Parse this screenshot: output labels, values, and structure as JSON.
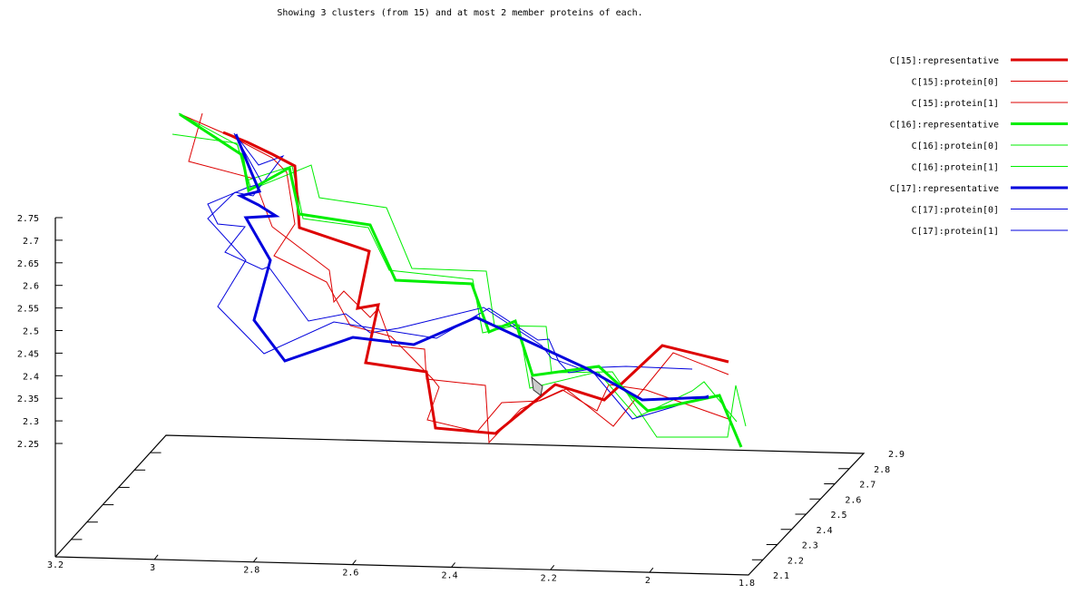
{
  "chart_data": {
    "type": "line",
    "title": "Showing 3 clusters (from 15) and at most 2 member proteins of each.",
    "axes": {
      "x": {
        "range": [
          3.2,
          1.8
        ],
        "ticks": [
          "3.2",
          "3",
          "2.8",
          "2.6",
          "2.4",
          "2.2",
          "2",
          "1.8"
        ]
      },
      "y": {
        "range": [
          2.1,
          2.9
        ],
        "ticks": [
          "2.1",
          "2.2",
          "2.3",
          "2.4",
          "2.5",
          "2.6",
          "2.7",
          "2.8",
          "2.9"
        ]
      },
      "z": {
        "range": [
          2.25,
          2.75
        ],
        "ticks": [
          "2.25",
          "2.3",
          "2.35",
          "2.4",
          "2.45",
          "2.5",
          "2.55",
          "2.6",
          "2.65",
          "2.7",
          "2.75"
        ]
      }
    },
    "grid": false,
    "legend_position": "top-right",
    "series": [
      {
        "name": "C[15]:representative",
        "color": "#dd0000",
        "width": 3,
        "points": [
          [
            246,
            146
          ],
          [
            273,
            157
          ],
          [
            300,
            170
          ],
          [
            325,
            183
          ],
          [
            330,
            251
          ],
          [
            407,
            277
          ],
          [
            394,
            340
          ],
          [
            417,
            336
          ],
          [
            403,
            400
          ],
          [
            470,
            410
          ],
          [
            480,
            472
          ],
          [
            546,
            478
          ],
          [
            612,
            424
          ],
          [
            666,
            441
          ],
          [
            730,
            381
          ],
          [
            803,
            399
          ]
        ]
      },
      {
        "name": "C[15]:protein[0]",
        "color": "#dd0000",
        "width": 1,
        "points": [
          [
            223,
            125
          ],
          [
            208,
            178
          ],
          [
            280,
            197
          ],
          [
            300,
            250
          ],
          [
            363,
            298
          ],
          [
            368,
            333
          ],
          [
            379,
            321
          ],
          [
            408,
            350
          ],
          [
            417,
            340
          ],
          [
            432,
            381
          ],
          [
            468,
            385
          ],
          [
            470,
            418
          ],
          [
            535,
            425
          ],
          [
            539,
            488
          ],
          [
            574,
            451
          ],
          [
            620,
            430
          ],
          [
            658,
            453
          ],
          [
            671,
            424
          ],
          [
            712,
            430
          ],
          [
            803,
            462
          ]
        ]
      },
      {
        "name": "C[15]:protein[1]",
        "color": "#dd0000",
        "width": 1,
        "points": [
          [
            199,
            126
          ],
          [
            254,
            150
          ],
          [
            300,
            174
          ],
          [
            316,
            190
          ],
          [
            325,
            247
          ],
          [
            302,
            282
          ],
          [
            360,
            311
          ],
          [
            386,
            359
          ],
          [
            431,
            371
          ],
          [
            477,
            418
          ],
          [
            484,
            427
          ],
          [
            471,
            463
          ],
          [
            526,
            476
          ],
          [
            553,
            444
          ],
          [
            595,
            442
          ],
          [
            624,
            429
          ],
          [
            676,
            470
          ],
          [
            742,
            389
          ],
          [
            803,
            413
          ]
        ]
      },
      {
        "name": "C[16]:representative",
        "color": "#00ee00",
        "width": 3,
        "points": [
          [
            198,
            126
          ],
          [
            267,
            171
          ],
          [
            274,
            210
          ],
          [
            319,
            185
          ],
          [
            330,
            236
          ],
          [
            408,
            248
          ],
          [
            436,
            309
          ],
          [
            520,
            313
          ],
          [
            539,
            366
          ],
          [
            568,
            354
          ],
          [
            587,
            414
          ],
          [
            660,
            404
          ],
          [
            714,
            453
          ],
          [
            793,
            436
          ],
          [
            817,
            493
          ]
        ]
      },
      {
        "name": "C[16]:protein[0]",
        "color": "#00ee00",
        "width": 1,
        "points": [
          [
            190,
            148
          ],
          [
            261,
            158
          ],
          [
            277,
            209
          ],
          [
            343,
            182
          ],
          [
            352,
            218
          ],
          [
            426,
            229
          ],
          [
            454,
            296
          ],
          [
            536,
            299
          ],
          [
            545,
            359
          ],
          [
            602,
            360
          ],
          [
            608,
            411
          ],
          [
            675,
            410
          ],
          [
            724,
            482
          ],
          [
            802,
            482
          ],
          [
            811,
            425
          ],
          [
            822,
            470
          ]
        ]
      },
      {
        "name": "C[16]:protein[1]",
        "color": "#00ee00",
        "width": 1,
        "points": [
          [
            197,
            125
          ],
          [
            262,
            160
          ],
          [
            272,
            199
          ],
          [
            322,
            183
          ],
          [
            334,
            241
          ],
          [
            406,
            251
          ],
          [
            429,
            298
          ],
          [
            521,
            308
          ],
          [
            532,
            367
          ],
          [
            572,
            358
          ],
          [
            584,
            428
          ],
          [
            659,
            410
          ],
          [
            702,
            460
          ],
          [
            763,
            431
          ],
          [
            776,
            421
          ],
          [
            812,
            465
          ]
        ]
      },
      {
        "name": "C[17]:representative",
        "color": "#0000dd",
        "width": 3,
        "points": [
          [
            260,
            148
          ],
          [
            277,
            190
          ],
          [
            286,
            211
          ],
          [
            265,
            216
          ],
          [
            285,
            226
          ],
          [
            304,
            238
          ],
          [
            271,
            240
          ],
          [
            298,
            287
          ],
          [
            280,
            353
          ],
          [
            314,
            398
          ],
          [
            389,
            372
          ],
          [
            456,
            380
          ],
          [
            525,
            350
          ],
          [
            646,
            406
          ],
          [
            708,
            441
          ],
          [
            781,
            438
          ]
        ]
      },
      {
        "name": "C[17]:protein[0]",
        "color": "#0000dd",
        "width": 1,
        "points": [
          [
            258,
            147
          ],
          [
            289,
            202
          ],
          [
            272,
            207
          ],
          [
            229,
            225
          ],
          [
            240,
            247
          ],
          [
            270,
            250
          ],
          [
            248,
            278
          ],
          [
            289,
            297
          ],
          [
            296,
            294
          ],
          [
            340,
            354
          ],
          [
            381,
            346
          ],
          [
            408,
            367
          ],
          [
            439,
            362
          ],
          [
            533,
            339
          ],
          [
            597,
            381
          ],
          [
            608,
            395
          ],
          [
            638,
            406
          ],
          [
            690,
            404
          ],
          [
            763,
            407
          ]
        ]
      },
      {
        "name": "C[17]:protein[1]",
        "color": "#0000dd",
        "width": 1,
        "points": [
          [
            260,
            149
          ],
          [
            285,
            182
          ],
          [
            312,
            172
          ],
          [
            279,
            216
          ],
          [
            259,
            212
          ],
          [
            229,
            241
          ],
          [
            271,
            287
          ],
          [
            240,
            338
          ],
          [
            291,
            390
          ],
          [
            368,
            355
          ],
          [
            481,
            373
          ],
          [
            539,
            340
          ],
          [
            593,
            375
          ],
          [
            605,
            374
          ],
          [
            616,
            399
          ],
          [
            627,
            411
          ],
          [
            651,
            407
          ],
          [
            697,
            462
          ],
          [
            741,
            449
          ],
          [
            781,
            436
          ]
        ]
      }
    ],
    "legend": [
      {
        "label": "C[15]:representative",
        "color": "#dd0000",
        "width": 3
      },
      {
        "label": "C[15]:protein[0]",
        "color": "#dd0000",
        "width": 1
      },
      {
        "label": "C[15]:protein[1]",
        "color": "#dd0000",
        "width": 1
      },
      {
        "label": "C[16]:representative",
        "color": "#00ee00",
        "width": 3
      },
      {
        "label": "C[16]:protein[0]",
        "color": "#00ee00",
        "width": 1
      },
      {
        "label": "C[16]:protein[1]",
        "color": "#00ee00",
        "width": 1
      },
      {
        "label": "C[17]:representative",
        "color": "#0000dd",
        "width": 3
      },
      {
        "label": "C[17]:protein[0]",
        "color": "#0000dd",
        "width": 1
      },
      {
        "label": "C[17]:protein[1]",
        "color": "#0000dd",
        "width": 1
      }
    ]
  }
}
